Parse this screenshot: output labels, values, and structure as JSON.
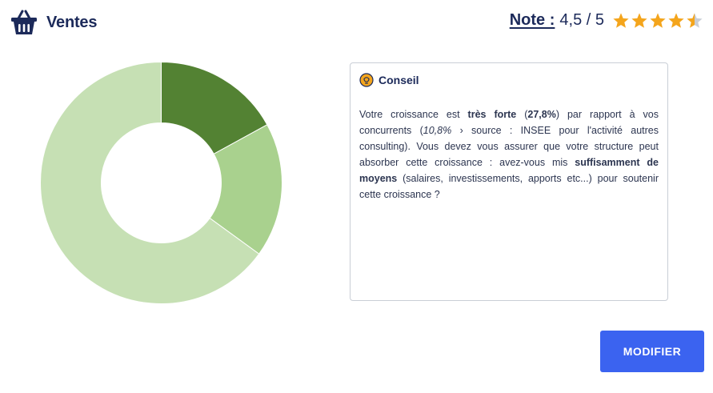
{
  "header": {
    "title": "Ventes",
    "icon": "basket-icon",
    "rating_label": "Note :",
    "rating_value": "4,5 / 5",
    "rating_fraction": 0.9,
    "star_color": "#f4a51c",
    "star_empty_color": "#c9ced6"
  },
  "chart_data": {
    "type": "pie",
    "style": "donut",
    "title": "",
    "slices": [
      {
        "value": 17,
        "color": "#538233"
      },
      {
        "value": 18,
        "color": "#a9d18e"
      },
      {
        "value": 65,
        "color": "#c6e0b4"
      }
    ]
  },
  "advice": {
    "icon": "lightbulb-icon",
    "title": "Conseil",
    "t1": "Votre croissance est ",
    "t2": "très forte",
    "t3": " (",
    "t4": "27,8%",
    "t5": ") par rapport à vos concurrents (",
    "t6": "10,8%",
    "t7": " › source : INSEE pour l'activité autres consulting). Vous devez vous assurer que votre structure peut absorber cette croissance : avez-vous mis ",
    "t8": "suffisamment de moyens",
    "t9": " (salaires, investissements, apports etc...) pour soutenir cette croissance ?"
  },
  "actions": {
    "modify_label": "MODIFIER",
    "accent_color": "#3b63f0"
  }
}
